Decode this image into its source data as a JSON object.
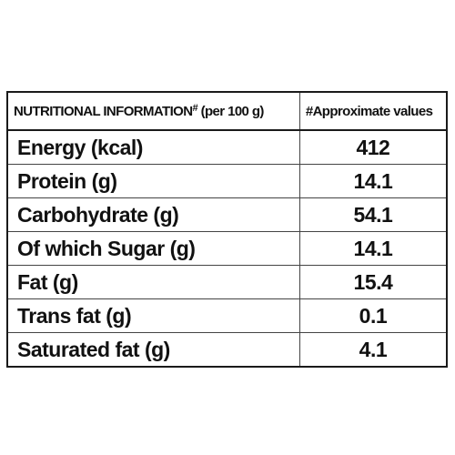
{
  "table": {
    "header": {
      "left_main": "NUTRITIONAL INFORMATION",
      "left_mark": "#",
      "left_suffix": " (per 100 g)",
      "right": "#Approximate values"
    },
    "rows": [
      {
        "label": "Energy (kcal)",
        "value": "412"
      },
      {
        "label": "Protein (g)",
        "value": "14.1"
      },
      {
        "label": "Carbohydrate (g)",
        "value": "54.1"
      },
      {
        "label": "Of which Sugar (g)",
        "value": "14.1"
      },
      {
        "label": "Fat (g)",
        "value": "15.4"
      },
      {
        "label": "Trans fat (g)",
        "value": "0.1"
      },
      {
        "label": "Saturated fat (g)",
        "value": "4.1"
      }
    ]
  }
}
